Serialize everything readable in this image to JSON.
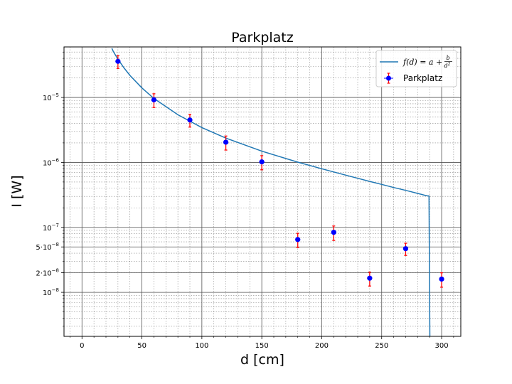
{
  "chart_data": {
    "type": "scatter",
    "title": "Parkplatz",
    "xlabel": "d [cm]",
    "ylabel": "I [W]",
    "xlim": [
      -15,
      316
    ],
    "ylim": [
      2.1e-09,
      6e-05
    ],
    "yscale": "log",
    "grid": true,
    "legend_position": "top-right",
    "x_ticks": [
      {
        "value": 0,
        "label": "0"
      },
      {
        "value": 50,
        "label": "50"
      },
      {
        "value": 100,
        "label": "100"
      },
      {
        "value": 150,
        "label": "150"
      },
      {
        "value": 200,
        "label": "200"
      },
      {
        "value": 250,
        "label": "250"
      },
      {
        "value": 300,
        "label": "300"
      }
    ],
    "y_ticks": [
      {
        "value": 1e-05,
        "base": "10",
        "exp": "−5"
      },
      {
        "value": 1e-06,
        "base": "10",
        "exp": "−6"
      },
      {
        "value": 1e-07,
        "base": "10",
        "exp": "−7"
      },
      {
        "value": 5e-08,
        "base": "5·10",
        "exp": "−8"
      },
      {
        "value": 2e-08,
        "base": "2·10",
        "exp": "−8"
      },
      {
        "value": 1e-08,
        "base": "10",
        "exp": "−8"
      }
    ],
    "series": [
      {
        "name": "Parkplatz",
        "kind": "errorbar",
        "color": "#0000ff",
        "error_color": "#ff0000",
        "x": [
          30,
          60,
          90,
          120,
          150,
          180,
          210,
          240,
          270,
          300
        ],
        "y": [
          3.6e-05,
          9.2e-06,
          4.5e-06,
          2.05e-06,
          1.02e-06,
          6.5e-08,
          8.4e-08,
          1.65e-08,
          4.7e-08,
          1.6e-08
        ],
        "y_err_low": [
          8e-06,
          2.2e-06,
          1e-06,
          5e-07,
          2.5e-07,
          1.6e-08,
          2.1e-08,
          4e-09,
          1e-08,
          4e-09
        ],
        "y_err_high": [
          8e-06,
          2.2e-06,
          1e-06,
          5e-07,
          2.5e-07,
          1.6e-08,
          2.1e-08,
          4e-09,
          1e-08,
          4e-09
        ]
      },
      {
        "name": "f(d) = a + b/d²",
        "kind": "line",
        "color": "#1f77b4",
        "x": [
          24.9,
          26,
          28,
          30,
          35,
          40,
          50,
          60,
          80,
          100,
          120,
          150,
          180,
          200,
          220,
          240,
          250,
          260,
          270,
          275,
          280,
          284,
          286,
          288,
          289.5
        ],
        "y": [
          5.7e-05,
          5.17e-05,
          4.46e-05,
          3.89e-05,
          2.86e-05,
          2.19e-05,
          1.4e-05,
          9.68e-06,
          5.42e-06,
          3.44e-06,
          2.37e-06,
          1.49e-06,
          1.01e-06,
          7.99e-07,
          6.37e-07,
          5.1e-07,
          4.59e-07,
          4.11e-07,
          3.71e-07,
          3.52e-07,
          3.33e-07,
          3.19e-07,
          3.12e-07,
          3.06e-07,
          3.05e-07
        ]
      }
    ],
    "legend": {
      "line_label_parts": {
        "lhs": "f(d) = a + ",
        "num": "b",
        "den": "d",
        "den_exp": "2"
      },
      "errorbar_label": "Parkplatz"
    }
  }
}
